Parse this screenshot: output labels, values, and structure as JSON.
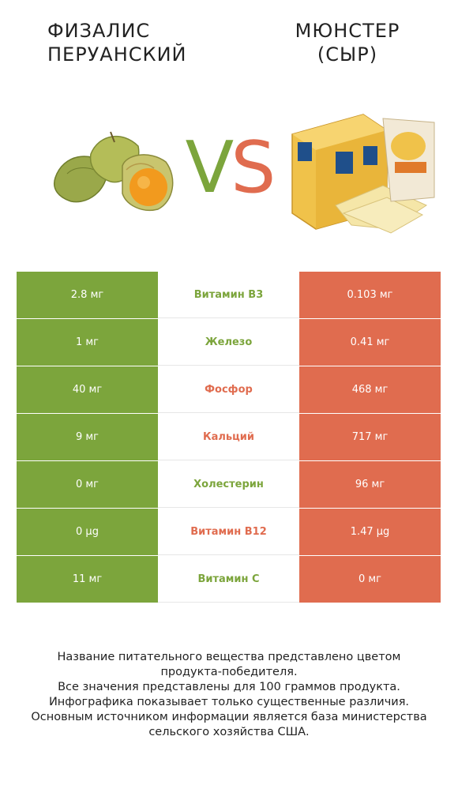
{
  "left_title": [
    "Физалис",
    "перуанский"
  ],
  "right_title": [
    "Мюнстер",
    "(сыр)"
  ],
  "vs": {
    "v": "V",
    "s": "S"
  },
  "colors": {
    "green": "#7ca53c",
    "red": "#e06c4f"
  },
  "images": {
    "left": "physalis-fruit-image",
    "right": "muenster-cheese-image"
  },
  "rows": [
    {
      "left": "2.8 мг",
      "name": "Витамин B3",
      "right": "0.103 мг",
      "winner": "green"
    },
    {
      "left": "1 мг",
      "name": "Железо",
      "right": "0.41 мг",
      "winner": "green"
    },
    {
      "left": "40 мг",
      "name": "Фосфор",
      "right": "468 мг",
      "winner": "red"
    },
    {
      "left": "9 мг",
      "name": "Кальций",
      "right": "717 мг",
      "winner": "red"
    },
    {
      "left": "0 мг",
      "name": "Холестерин",
      "right": "96 мг",
      "winner": "green"
    },
    {
      "left": "0 µg",
      "name": "Витамин B12",
      "right": "1.47 µg",
      "winner": "red"
    },
    {
      "left": "11 мг",
      "name": "Витамин C",
      "right": "0 мг",
      "winner": "green"
    }
  ],
  "footnote": [
    "Название питательного вещества представлено цветом",
    "продукта-победителя.",
    "Все значения представлены для 100 граммов продукта.",
    "Инфографика показывает только существенные различия.",
    "Основным источником информации является база министерства",
    "сельского хозяйства США."
  ]
}
